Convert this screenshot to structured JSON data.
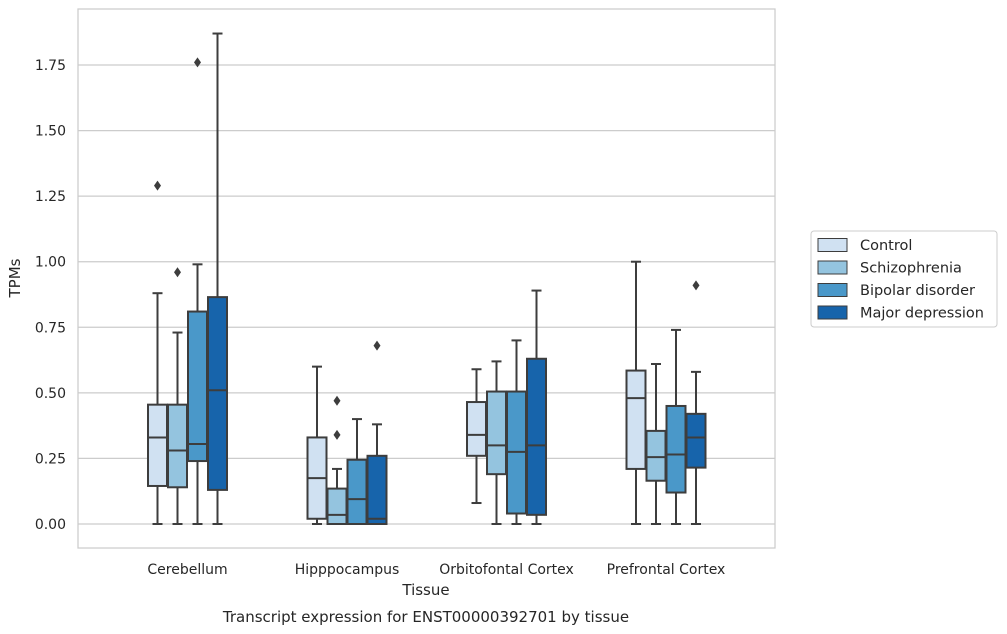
{
  "chart_data": {
    "type": "box",
    "caption": "Transcript expression for ENST00000392701 by tissue",
    "xlabel": "Tissue",
    "ylabel": "TPMs",
    "ylim": [
      -0.09,
      1.96
    ],
    "yticks": [
      "0.00",
      "0.25",
      "0.50",
      "0.75",
      "1.00",
      "1.25",
      "1.50",
      "1.75"
    ],
    "grid": "horizontal",
    "legend_position": "right",
    "categories": [
      "Cerebellum",
      "Hipppocampus",
      "Orbitofontal Cortex",
      "Prefrontal Cortex"
    ],
    "series": [
      {
        "name": "Control",
        "color": "#d0e1f2",
        "boxes": [
          {
            "whisker_low": 0.0,
            "q1": 0.145,
            "median": 0.33,
            "q3": 0.455,
            "whisker_high": 0.88,
            "outliers": [
              1.29
            ]
          },
          {
            "whisker_low": 0.0,
            "q1": 0.02,
            "median": 0.175,
            "q3": 0.33,
            "whisker_high": 0.6,
            "outliers": []
          },
          {
            "whisker_low": 0.08,
            "q1": 0.26,
            "median": 0.34,
            "q3": 0.465,
            "whisker_high": 0.59,
            "outliers": []
          },
          {
            "whisker_low": 0.0,
            "q1": 0.21,
            "median": 0.48,
            "q3": 0.585,
            "whisker_high": 1.0,
            "outliers": []
          }
        ]
      },
      {
        "name": "Schizophrenia",
        "color": "#94c4df",
        "boxes": [
          {
            "whisker_low": 0.0,
            "q1": 0.14,
            "median": 0.28,
            "q3": 0.455,
            "whisker_high": 0.73,
            "outliers": [
              0.96
            ]
          },
          {
            "whisker_low": 0.0,
            "q1": 0.0,
            "median": 0.035,
            "q3": 0.135,
            "whisker_high": 0.21,
            "outliers": [
              0.34,
              0.47
            ]
          },
          {
            "whisker_low": 0.0,
            "q1": 0.19,
            "median": 0.3,
            "q3": 0.505,
            "whisker_high": 0.62,
            "outliers": []
          },
          {
            "whisker_low": 0.0,
            "q1": 0.165,
            "median": 0.255,
            "q3": 0.355,
            "whisker_high": 0.61,
            "outliers": []
          }
        ]
      },
      {
        "name": "Bipolar disorder",
        "color": "#4a98c9",
        "boxes": [
          {
            "whisker_low": 0.0,
            "q1": 0.24,
            "median": 0.305,
            "q3": 0.81,
            "whisker_high": 0.99,
            "outliers": [
              1.76
            ]
          },
          {
            "whisker_low": 0.0,
            "q1": 0.0,
            "median": 0.095,
            "q3": 0.245,
            "whisker_high": 0.4,
            "outliers": []
          },
          {
            "whisker_low": 0.0,
            "q1": 0.04,
            "median": 0.275,
            "q3": 0.505,
            "whisker_high": 0.7,
            "outliers": []
          },
          {
            "whisker_low": 0.0,
            "q1": 0.12,
            "median": 0.265,
            "q3": 0.45,
            "whisker_high": 0.74,
            "outliers": []
          }
        ]
      },
      {
        "name": "Major depression",
        "color": "#1764ab",
        "boxes": [
          {
            "whisker_low": 0.0,
            "q1": 0.13,
            "median": 0.51,
            "q3": 0.865,
            "whisker_high": 1.87,
            "outliers": []
          },
          {
            "whisker_low": 0.0,
            "q1": 0.0,
            "median": 0.02,
            "q3": 0.26,
            "whisker_high": 0.38,
            "outliers": [
              0.68
            ]
          },
          {
            "whisker_low": 0.0,
            "q1": 0.035,
            "median": 0.3,
            "q3": 0.63,
            "whisker_high": 0.89,
            "outliers": []
          },
          {
            "whisker_low": 0.0,
            "q1": 0.215,
            "median": 0.33,
            "q3": 0.42,
            "whisker_high": 0.58,
            "outliers": [
              0.91
            ]
          }
        ]
      }
    ]
  }
}
